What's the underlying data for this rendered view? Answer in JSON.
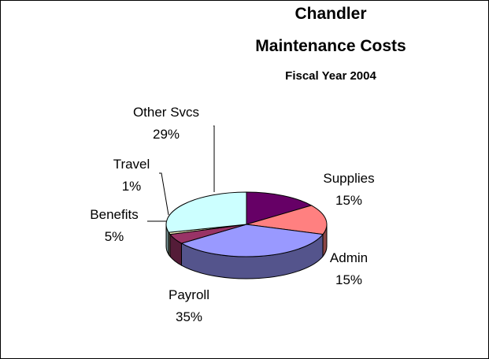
{
  "chart_data": {
    "type": "pie",
    "style": "3d",
    "title_lines": [
      "Chandler",
      "Maintenance Costs"
    ],
    "subtitle": "Fiscal Year 2004",
    "slices": [
      {
        "name": "Supplies",
        "value": 15,
        "label_pct": "15%",
        "color": "#660066"
      },
      {
        "name": "Admin",
        "value": 15,
        "label_pct": "15%",
        "color": "#FF8080"
      },
      {
        "name": "Payroll",
        "value": 35,
        "label_pct": "35%",
        "color": "#9999FF"
      },
      {
        "name": "Benefits",
        "value": 5,
        "label_pct": "5%",
        "color": "#993366"
      },
      {
        "name": "Travel",
        "value": 1,
        "label_pct": "1%",
        "color": "#FFFFCC"
      },
      {
        "name": "Other Svcs",
        "value": 29,
        "label_pct": "29%",
        "color": "#CCFFFF"
      }
    ],
    "legend": "none"
  }
}
